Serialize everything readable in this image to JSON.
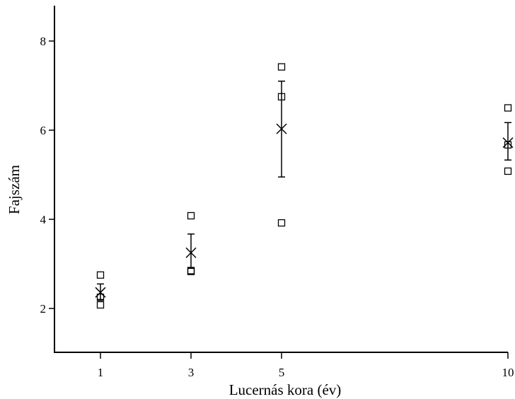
{
  "chart_data": {
    "type": "scatter",
    "title": "",
    "xlabel": "Lucernás kora (év)",
    "ylabel": "Fajszám",
    "x_ticks": [
      1,
      3,
      5,
      10
    ],
    "y_ticks": [
      2,
      4,
      6,
      8
    ],
    "xlim": [
      0,
      10
    ],
    "ylim": [
      1,
      8.8
    ],
    "grid": false,
    "legend": "none",
    "series": [
      {
        "marker": "square",
        "points": [
          {
            "x": 1,
            "y": 2.75
          },
          {
            "x": 1,
            "y": 2.25
          },
          {
            "x": 1,
            "y": 2.08
          },
          {
            "x": 3,
            "y": 4.08
          },
          {
            "x": 3,
            "y": 2.85
          },
          {
            "x": 3,
            "y": 2.83
          },
          {
            "x": 5,
            "y": 7.42
          },
          {
            "x": 5,
            "y": 6.75
          },
          {
            "x": 5,
            "y": 3.92
          },
          {
            "x": 10,
            "y": 6.5
          },
          {
            "x": 10,
            "y": 5.67
          },
          {
            "x": 10,
            "y": 5.08
          }
        ]
      },
      {
        "marker": "x",
        "error_bars": true,
        "points": [
          {
            "x": 1,
            "y": 2.36,
            "err_low": 2.2,
            "err_high": 2.55
          },
          {
            "x": 3,
            "y": 3.25,
            "err_low": 2.9,
            "err_high": 3.67
          },
          {
            "x": 5,
            "y": 6.03,
            "err_low": 4.95,
            "err_high": 7.1
          },
          {
            "x": 10,
            "y": 5.72,
            "err_low": 5.33,
            "err_high": 6.17
          }
        ]
      }
    ],
    "colors": {
      "ink": "#000000",
      "background": "#ffffff"
    }
  }
}
